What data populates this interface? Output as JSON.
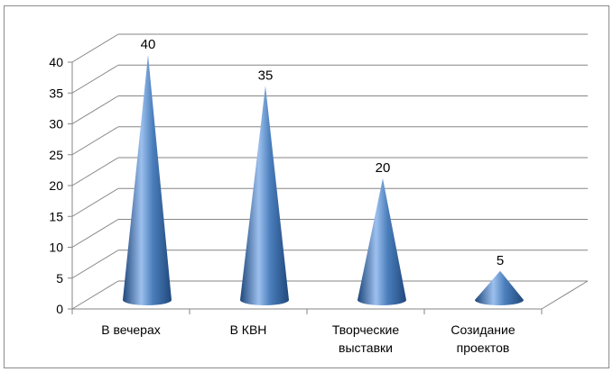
{
  "chart_data": {
    "type": "bar",
    "style": "3d-cone",
    "title": "",
    "xlabel": "",
    "ylabel": "",
    "categories": [
      [
        "В вечерах"
      ],
      [
        "В КВН"
      ],
      [
        "Творческие",
        "выставки"
      ],
      [
        "Созидание",
        "проектов"
      ]
    ],
    "values": [
      40,
      35,
      20,
      5
    ],
    "data_labels": [
      "40",
      "35",
      "20",
      "5"
    ],
    "ylim": [
      0,
      40
    ],
    "yticks": [
      0,
      5,
      10,
      15,
      20,
      25,
      30,
      35,
      40
    ],
    "ytick_labels": [
      "0",
      "5",
      "10",
      "15",
      "20",
      "25",
      "30",
      "35",
      "40"
    ],
    "grid": true,
    "legend": "none",
    "colors": {
      "cone": "#4a7ebb",
      "cone_light": "#9cc0ee",
      "cone_dark": "#20487c",
      "grid": "#868686",
      "frame": "#8c8c8c"
    }
  }
}
